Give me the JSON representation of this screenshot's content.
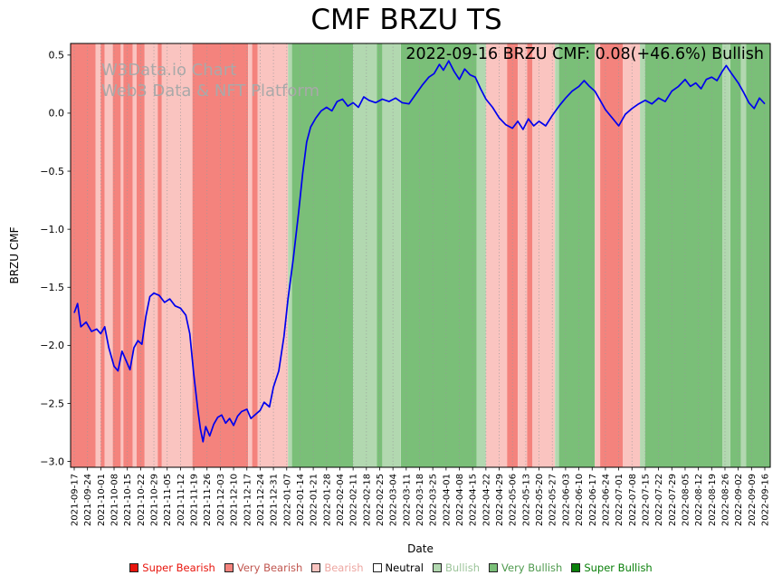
{
  "page": {
    "title": "CMF BRZU TS"
  },
  "watermark": {
    "line1": "W3Data.io Chart",
    "line2": "Web3 Data & NFT Platform"
  },
  "annotation": {
    "text": "2022-09-16 BRZU CMF: 0.08(+46.6%) Bullish"
  },
  "axes": {
    "ylabel": "BRZU CMF",
    "xlabel": "Date"
  },
  "legend": {
    "items": [
      {
        "label": "Super Bearish",
        "color": "#e8150d",
        "text_color": "#e8150d"
      },
      {
        "label": "Very Bearish",
        "color": "#f4837d",
        "text_color": "#c0564f"
      },
      {
        "label": "Bearish",
        "color": "#fac4c0",
        "text_color": "#eda6a1"
      },
      {
        "label": "Neutral",
        "color": "#ffffff",
        "text_color": "#000000"
      },
      {
        "label": "Bullish",
        "color": "#b2d8b0",
        "text_color": "#9cc49a"
      },
      {
        "label": "Very Bullish",
        "color": "#7abf78",
        "text_color": "#4f9a4e"
      },
      {
        "label": "Super Bullish",
        "color": "#0b800b",
        "text_color": "#0b800b"
      }
    ]
  },
  "chart_data": {
    "type": "line",
    "title": "CMF BRZU TS",
    "xlabel": "Date",
    "ylabel": "BRZU CMF",
    "ylim": [
      -3.05,
      0.6
    ],
    "yticks": [
      0.5,
      0.0,
      -0.5,
      -1.0,
      -1.5,
      -2.0,
      -2.5,
      -3.0
    ],
    "grid": {
      "vertical": true,
      "style": "dotted",
      "color": "#999999"
    },
    "latest": {
      "date": "2022-09-16",
      "value": 0.08,
      "change_pct": 46.6,
      "sentiment": "Bullish"
    },
    "x": [
      "2021-09-17",
      "2021-09-24",
      "2021-10-01",
      "2021-10-08",
      "2021-10-15",
      "2021-10-22",
      "2021-10-29",
      "2021-11-05",
      "2021-11-12",
      "2021-11-19",
      "2021-11-26",
      "2021-12-03",
      "2021-12-10",
      "2021-12-17",
      "2021-12-24",
      "2021-12-31",
      "2022-01-07",
      "2022-01-14",
      "2022-01-21",
      "2022-01-28",
      "2022-02-04",
      "2022-02-11",
      "2022-02-18",
      "2022-02-25",
      "2022-03-04",
      "2022-03-11",
      "2022-03-18",
      "2022-03-25",
      "2022-04-01",
      "2022-04-08",
      "2022-04-15",
      "2022-04-22",
      "2022-04-29",
      "2022-05-06",
      "2022-05-13",
      "2022-05-20",
      "2022-05-27",
      "2022-06-03",
      "2022-06-10",
      "2022-06-17",
      "2022-06-24",
      "2022-07-01",
      "2022-07-08",
      "2022-07-15",
      "2022-07-22",
      "2022-07-29",
      "2022-08-05",
      "2022-08-12",
      "2022-08-19",
      "2022-08-26",
      "2022-09-02",
      "2022-09-09",
      "2022-09-16"
    ],
    "series": [
      {
        "name": "BRZU CMF",
        "color": "#0000ee",
        "points": [
          [
            0,
            -1.72
          ],
          [
            0.25,
            -1.64
          ],
          [
            0.5,
            -1.84
          ],
          [
            0.9,
            -1.8
          ],
          [
            1.3,
            -1.88
          ],
          [
            1.7,
            -1.86
          ],
          [
            2,
            -1.9
          ],
          [
            2.3,
            -1.84
          ],
          [
            2.6,
            -2.02
          ],
          [
            3,
            -2.18
          ],
          [
            3.3,
            -2.22
          ],
          [
            3.6,
            -2.05
          ],
          [
            3.9,
            -2.13
          ],
          [
            4.2,
            -2.21
          ],
          [
            4.5,
            -2.02
          ],
          [
            4.8,
            -1.96
          ],
          [
            5.1,
            -1.99
          ],
          [
            5.4,
            -1.75
          ],
          [
            5.7,
            -1.58
          ],
          [
            6,
            -1.55
          ],
          [
            6.4,
            -1.57
          ],
          [
            6.8,
            -1.63
          ],
          [
            7.2,
            -1.6
          ],
          [
            7.6,
            -1.66
          ],
          [
            8,
            -1.68
          ],
          [
            8.4,
            -1.74
          ],
          [
            8.7,
            -1.9
          ],
          [
            9,
            -2.25
          ],
          [
            9.3,
            -2.55
          ],
          [
            9.5,
            -2.72
          ],
          [
            9.7,
            -2.83
          ],
          [
            9.9,
            -2.7
          ],
          [
            10.2,
            -2.78
          ],
          [
            10.5,
            -2.68
          ],
          [
            10.8,
            -2.62
          ],
          [
            11.1,
            -2.6
          ],
          [
            11.4,
            -2.67
          ],
          [
            11.7,
            -2.63
          ],
          [
            12,
            -2.69
          ],
          [
            12.3,
            -2.61
          ],
          [
            12.6,
            -2.57
          ],
          [
            13,
            -2.55
          ],
          [
            13.3,
            -2.63
          ],
          [
            13.7,
            -2.59
          ],
          [
            14,
            -2.56
          ],
          [
            14.3,
            -2.49
          ],
          [
            14.7,
            -2.53
          ],
          [
            15,
            -2.36
          ],
          [
            15.4,
            -2.22
          ],
          [
            15.8,
            -1.92
          ],
          [
            16.1,
            -1.6
          ],
          [
            16.5,
            -1.25
          ],
          [
            16.9,
            -0.85
          ],
          [
            17.2,
            -0.52
          ],
          [
            17.5,
            -0.25
          ],
          [
            17.8,
            -0.12
          ],
          [
            18.2,
            -0.04
          ],
          [
            18.6,
            0.02
          ],
          [
            19,
            0.05
          ],
          [
            19.4,
            0.02
          ],
          [
            19.8,
            0.1
          ],
          [
            20.2,
            0.12
          ],
          [
            20.6,
            0.06
          ],
          [
            21,
            0.09
          ],
          [
            21.4,
            0.05
          ],
          [
            21.8,
            0.14
          ],
          [
            22.2,
            0.11
          ],
          [
            22.7,
            0.09
          ],
          [
            23.2,
            0.12
          ],
          [
            23.7,
            0.1
          ],
          [
            24.2,
            0.13
          ],
          [
            24.7,
            0.09
          ],
          [
            25.2,
            0.08
          ],
          [
            25.7,
            0.16
          ],
          [
            26.2,
            0.24
          ],
          [
            26.7,
            0.31
          ],
          [
            27.1,
            0.34
          ],
          [
            27.5,
            0.42
          ],
          [
            27.8,
            0.37
          ],
          [
            28.2,
            0.45
          ],
          [
            28.6,
            0.36
          ],
          [
            29,
            0.29
          ],
          [
            29.4,
            0.38
          ],
          [
            29.8,
            0.33
          ],
          [
            30.2,
            0.31
          ],
          [
            30.6,
            0.21
          ],
          [
            31,
            0.12
          ],
          [
            31.5,
            0.05
          ],
          [
            32,
            -0.04
          ],
          [
            32.5,
            -0.1
          ],
          [
            33,
            -0.13
          ],
          [
            33.4,
            -0.07
          ],
          [
            33.8,
            -0.14
          ],
          [
            34.2,
            -0.05
          ],
          [
            34.6,
            -0.11
          ],
          [
            35,
            -0.07
          ],
          [
            35.5,
            -0.11
          ],
          [
            36,
            -0.02
          ],
          [
            36.5,
            0.06
          ],
          [
            37,
            0.13
          ],
          [
            37.5,
            0.19
          ],
          [
            38,
            0.23
          ],
          [
            38.4,
            0.28
          ],
          [
            38.8,
            0.23
          ],
          [
            39.2,
            0.19
          ],
          [
            39.6,
            0.11
          ],
          [
            40,
            0.03
          ],
          [
            40.5,
            -0.04
          ],
          [
            41,
            -0.11
          ],
          [
            41.5,
            -0.01
          ],
          [
            42,
            0.04
          ],
          [
            42.5,
            0.08
          ],
          [
            43,
            0.11
          ],
          [
            43.5,
            0.08
          ],
          [
            44,
            0.13
          ],
          [
            44.5,
            0.1
          ],
          [
            45,
            0.19
          ],
          [
            45.5,
            0.23
          ],
          [
            46,
            0.29
          ],
          [
            46.4,
            0.23
          ],
          [
            46.8,
            0.26
          ],
          [
            47.2,
            0.21
          ],
          [
            47.6,
            0.29
          ],
          [
            48,
            0.31
          ],
          [
            48.4,
            0.28
          ],
          [
            48.8,
            0.36
          ],
          [
            49.1,
            0.41
          ],
          [
            49.5,
            0.34
          ],
          [
            50,
            0.26
          ],
          [
            50.4,
            0.18
          ],
          [
            50.8,
            0.09
          ],
          [
            51.2,
            0.04
          ],
          [
            51.6,
            0.13
          ],
          [
            52,
            0.08
          ]
        ]
      }
    ],
    "sentiment_colors": {
      "super_bearish": "#e8150d",
      "very_bearish": "#f4837d",
      "bearish": "#fac4c0",
      "neutral": "#ffffff",
      "bullish": "#b2d8b0",
      "very_bullish": "#7abf78",
      "super_bullish": "#0b800b"
    },
    "bands_format": [
      "from_index",
      "to_index",
      "sentiment"
    ],
    "background_bands": [
      [
        0,
        1.6,
        "very_bearish"
      ],
      [
        1.6,
        2,
        "bearish"
      ],
      [
        2,
        2.3,
        "very_bearish"
      ],
      [
        2.3,
        2.9,
        "bearish"
      ],
      [
        2.9,
        3.5,
        "very_bearish"
      ],
      [
        3.5,
        3.7,
        "bearish"
      ],
      [
        3.7,
        4.4,
        "very_bearish"
      ],
      [
        4.4,
        4.7,
        "bearish"
      ],
      [
        4.7,
        5.3,
        "very_bearish"
      ],
      [
        5.3,
        6.3,
        "bearish"
      ],
      [
        6.3,
        6.6,
        "very_bearish"
      ],
      [
        6.6,
        8.9,
        "bearish"
      ],
      [
        8.9,
        13.1,
        "very_bearish"
      ],
      [
        13.1,
        13.4,
        "bearish"
      ],
      [
        13.4,
        13.8,
        "very_bearish"
      ],
      [
        13.8,
        16.1,
        "bearish"
      ],
      [
        16.1,
        16.4,
        "bullish"
      ],
      [
        16.4,
        21,
        "very_bullish"
      ],
      [
        21,
        22.8,
        "bullish"
      ],
      [
        22.8,
        23.2,
        "very_bullish"
      ],
      [
        23.2,
        24.6,
        "bullish"
      ],
      [
        24.6,
        30.3,
        "very_bullish"
      ],
      [
        30.3,
        31,
        "bullish"
      ],
      [
        31,
        32.6,
        "bearish"
      ],
      [
        32.6,
        33.4,
        "very_bearish"
      ],
      [
        33.4,
        34.1,
        "bearish"
      ],
      [
        34.1,
        34.5,
        "very_bearish"
      ],
      [
        34.5,
        36.2,
        "bearish"
      ],
      [
        36.2,
        36.5,
        "bullish"
      ],
      [
        36.5,
        39.2,
        "very_bullish"
      ],
      [
        39.2,
        39.6,
        "bearish"
      ],
      [
        39.6,
        41.3,
        "very_bearish"
      ],
      [
        41.3,
        42.6,
        "bearish"
      ],
      [
        42.6,
        43,
        "bullish"
      ],
      [
        43,
        48.8,
        "very_bullish"
      ],
      [
        48.8,
        49.4,
        "bullish"
      ],
      [
        49.4,
        50.2,
        "very_bullish"
      ],
      [
        50.2,
        50.6,
        "bullish"
      ],
      [
        50.6,
        52,
        "very_bullish"
      ]
    ]
  }
}
